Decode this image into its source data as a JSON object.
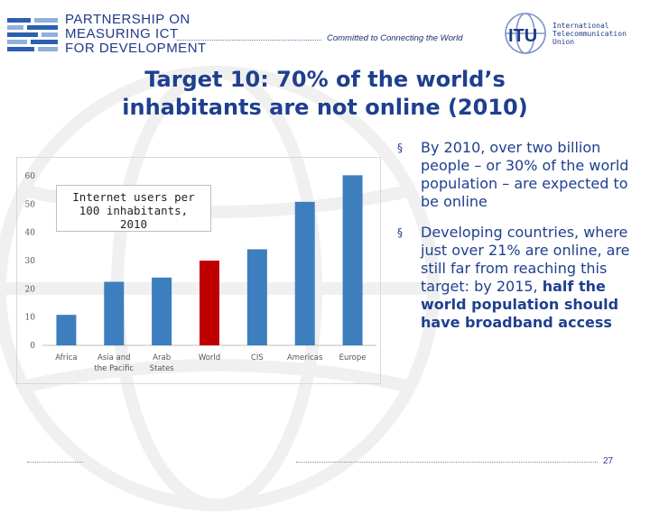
{
  "header": {
    "logo_lines": [
      "PARTNERSHIP ON",
      "MEASURING ICT",
      "FOR DEVELOPMENT"
    ],
    "tagline": "Committed to Connecting the World",
    "itu_mark": "ITU",
    "itu_lines": [
      "International",
      "Telecommunication",
      "Union"
    ]
  },
  "title": {
    "line1": "Target 10: 70% of the world’s",
    "line2": "inhabitants are not online (2010)"
  },
  "chart_data": {
    "type": "bar",
    "title": "Internet users per 100 inhabitants, 2010",
    "legend_lines": [
      "Internet users per",
      "100 inhabitants,",
      "2010"
    ],
    "categories": [
      "Africa",
      "Asia and the Pacific",
      "Arab States",
      "World",
      "CIS",
      "Americas",
      "Europe"
    ],
    "category_lines": [
      [
        "Africa"
      ],
      [
        "Asia and",
        "the Pacific"
      ],
      [
        "Arab",
        "States"
      ],
      [
        "World"
      ],
      [
        "CIS"
      ],
      [
        "Americas"
      ],
      [
        "Europe"
      ]
    ],
    "values": [
      10.8,
      22.5,
      24.0,
      30.0,
      34.0,
      50.8,
      60.2
    ],
    "highlight": "World",
    "colors": {
      "bar": "#3d7ebf",
      "highlight": "#c00000"
    },
    "ylim": [
      0,
      60
    ],
    "yticks": [
      0,
      10,
      20,
      30,
      40,
      50,
      60
    ],
    "grid": false,
    "legend_position": "top-left"
  },
  "bullets": [
    {
      "marker": "§",
      "text": "By 2010, over two billion people – or 30% of the world population – are expected to be online",
      "bold": ""
    },
    {
      "marker": "§",
      "text": "Developing countries, where just over 21% are online, are still far from reaching this target: by 2015, ",
      "bold": "half the world population should have broadband access"
    }
  ],
  "footer": {
    "page_number": "27"
  }
}
